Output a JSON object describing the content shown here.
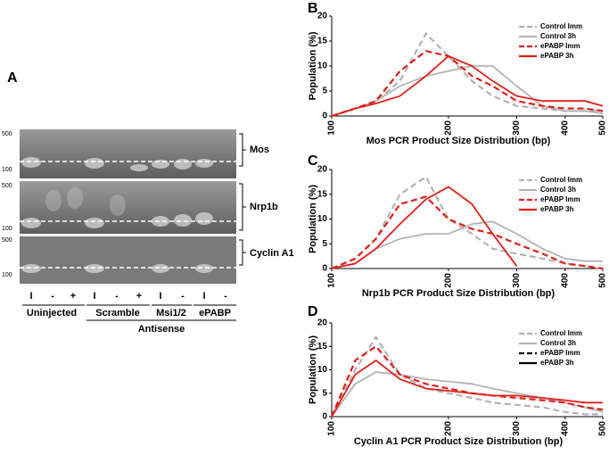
{
  "panel_labels": [
    "A",
    "B",
    "C",
    "D"
  ],
  "gel": {
    "strips": [
      {
        "label": "Mos",
        "markers": [
          "500",
          "100"
        ]
      },
      {
        "label": "Nrp1b",
        "markers": [
          "500",
          "100"
        ]
      },
      {
        "label": "Cyclin A1",
        "markers": [
          "500",
          "100"
        ]
      }
    ],
    "lanes": [
      "I",
      "-",
      "+",
      "I",
      "-",
      "+",
      "I",
      "-",
      "I",
      "-"
    ],
    "groups": [
      "Uninjected",
      "Scramble",
      "Msi1/2",
      "ePABP"
    ],
    "group_title": "Antisense"
  },
  "chart_data": [
    {
      "type": "line",
      "xlabel": "Mos PCR Product Size Distribution (bp)",
      "ylabel": "Population (%)",
      "x": [
        100,
        115,
        130,
        150,
        175,
        200,
        230,
        260,
        300,
        350,
        400,
        450,
        500
      ],
      "xscale": "log",
      "xlim": [
        100,
        500
      ],
      "xticks": [
        100,
        200,
        300,
        400,
        500
      ],
      "ylim": [
        0,
        20
      ],
      "yticks": [
        0,
        5,
        10,
        15,
        20
      ],
      "legend": "upper right",
      "series": [
        {
          "name": "Control Imm",
          "color": "#b3b3b3",
          "dashed": true,
          "values": [
            0,
            1.5,
            3,
            7,
            16.5,
            12,
            7,
            4,
            2,
            1.5,
            1,
            1,
            1
          ]
        },
        {
          "name": "Control 3h",
          "color": "#b3b3b3",
          "dashed": false,
          "values": [
            0,
            1.5,
            3,
            6,
            8,
            9,
            10,
            10,
            6,
            2,
            1,
            1,
            0.5
          ]
        },
        {
          "name": "ePABP Imm",
          "color": "#e0201b",
          "dashed": true,
          "values": [
            0,
            1.5,
            3,
            9,
            13,
            12,
            8,
            6,
            3,
            2,
            1.5,
            1.5,
            1
          ]
        },
        {
          "name": "ePABP 3h",
          "color": "#e0201b",
          "dashed": false,
          "values": [
            0,
            1.5,
            2.5,
            4,
            8,
            12,
            10,
            7,
            4,
            3,
            3,
            3,
            2
          ]
        }
      ]
    },
    {
      "type": "line",
      "xlabel": "Nrp1b PCR Product Size Distribution (bp)",
      "ylabel": "Population (%)",
      "x": [
        100,
        115,
        130,
        150,
        175,
        200,
        230,
        260,
        300,
        350,
        400,
        450,
        500
      ],
      "xscale": "log",
      "xlim": [
        100,
        500
      ],
      "xticks": [
        100,
        200,
        300,
        400,
        500
      ],
      "ylim": [
        0,
        20
      ],
      "yticks": [
        0,
        5,
        10,
        15,
        20
      ],
      "legend": "upper right",
      "series": [
        {
          "name": "Control Imm",
          "color": "#b3b3b3",
          "dashed": true,
          "values": [
            0,
            2,
            6,
            15,
            18.5,
            10,
            7,
            4,
            3,
            2,
            1,
            0.5,
            0
          ]
        },
        {
          "name": "Control 3h",
          "color": "#b3b3b3",
          "dashed": false,
          "values": [
            0,
            1,
            4,
            6,
            7,
            7,
            9,
            9.5,
            7,
            4,
            2,
            1.5,
            1.5
          ]
        },
        {
          "name": "ePABP Imm",
          "color": "#e0201b",
          "dashed": true,
          "values": [
            0,
            2,
            6,
            13,
            14.5,
            10,
            8,
            7,
            5,
            3,
            1,
            0.5,
            0
          ]
        },
        {
          "name": "ePABP 3h",
          "color": "#e0201b",
          "dashed": false,
          "values": [
            0,
            1,
            4,
            9,
            14,
            16.5,
            13,
            7,
            0.5,
            null,
            null,
            null,
            null
          ]
        }
      ]
    },
    {
      "type": "line",
      "xlabel": "Cyclin A1 PCR Product Size Distribution (bp)",
      "ylabel": "Population (%)",
      "x": [
        100,
        115,
        130,
        150,
        175,
        200,
        230,
        260,
        300,
        350,
        400,
        450,
        500
      ],
      "xscale": "log",
      "xlim": [
        100,
        500
      ],
      "xticks": [
        100,
        200,
        300,
        400,
        500
      ],
      "ylim": [
        0,
        20
      ],
      "yticks": [
        0,
        5,
        10,
        15,
        20
      ],
      "legend": "upper right",
      "series": [
        {
          "name": "Control Imm",
          "color": "#b3b3b3",
          "dashed": true,
          "values": [
            0,
            10,
            17,
            9,
            6,
            5,
            4,
            3,
            2.5,
            2,
            1,
            0.5,
            0.5
          ]
        },
        {
          "name": "Control 3h",
          "color": "#b3b3b3",
          "dashed": false,
          "values": [
            0,
            7,
            9.5,
            9,
            8,
            7.5,
            7,
            6,
            5,
            4,
            3,
            2,
            1
          ]
        },
        {
          "name": "ePABP Imm",
          "color": "#e0201b",
          "legend_color": "#000000",
          "dashed": true,
          "values": [
            0,
            12,
            15,
            9,
            7,
            6,
            5,
            4.5,
            4,
            3.5,
            3,
            2,
            1.5
          ]
        },
        {
          "name": "ePABP 3h",
          "color": "#e0201b",
          "legend_color": "#000000",
          "dashed": false,
          "values": [
            0,
            9,
            12,
            8,
            6,
            5.5,
            5,
            4.5,
            4.5,
            4,
            3.5,
            3,
            3
          ]
        }
      ]
    }
  ]
}
